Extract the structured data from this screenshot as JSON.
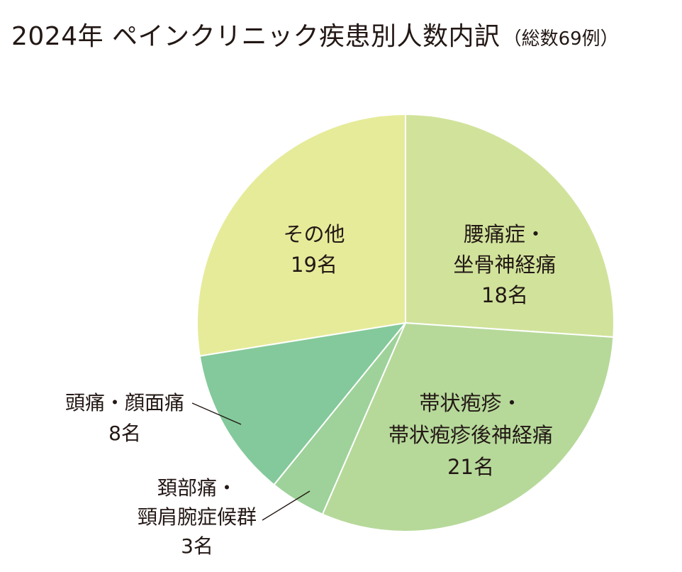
{
  "chart_data": {
    "type": "pie",
    "title": "2024年 ペインクリニック疾患別人数内訳",
    "subtitle": "（総数69例）",
    "total": 69,
    "start_angle_deg": 0,
    "direction": "clockwise",
    "slices": [
      {
        "lines": [
          "腰痛症・",
          "坐骨神経痛"
        ],
        "count_label": "18名",
        "value": 18,
        "color": "#d1e39b"
      },
      {
        "lines": [
          "帯状疱疹・",
          "帯状疱疹後神経痛"
        ],
        "count_label": "21名",
        "value": 21,
        "color": "#b6d99a"
      },
      {
        "lines": [
          "頚部痛・",
          "頸肩腕症候群"
        ],
        "count_label": "3名",
        "value": 3,
        "color": "#9ed29a"
      },
      {
        "lines": [
          "頭痛・顔面痛"
        ],
        "count_label": "8名",
        "value": 8,
        "color": "#84c99b"
      },
      {
        "lines": [
          "その他"
        ],
        "count_label": "19名",
        "value": 19,
        "color": "#e6eb9a"
      }
    ],
    "legend": "none",
    "grid": false
  }
}
